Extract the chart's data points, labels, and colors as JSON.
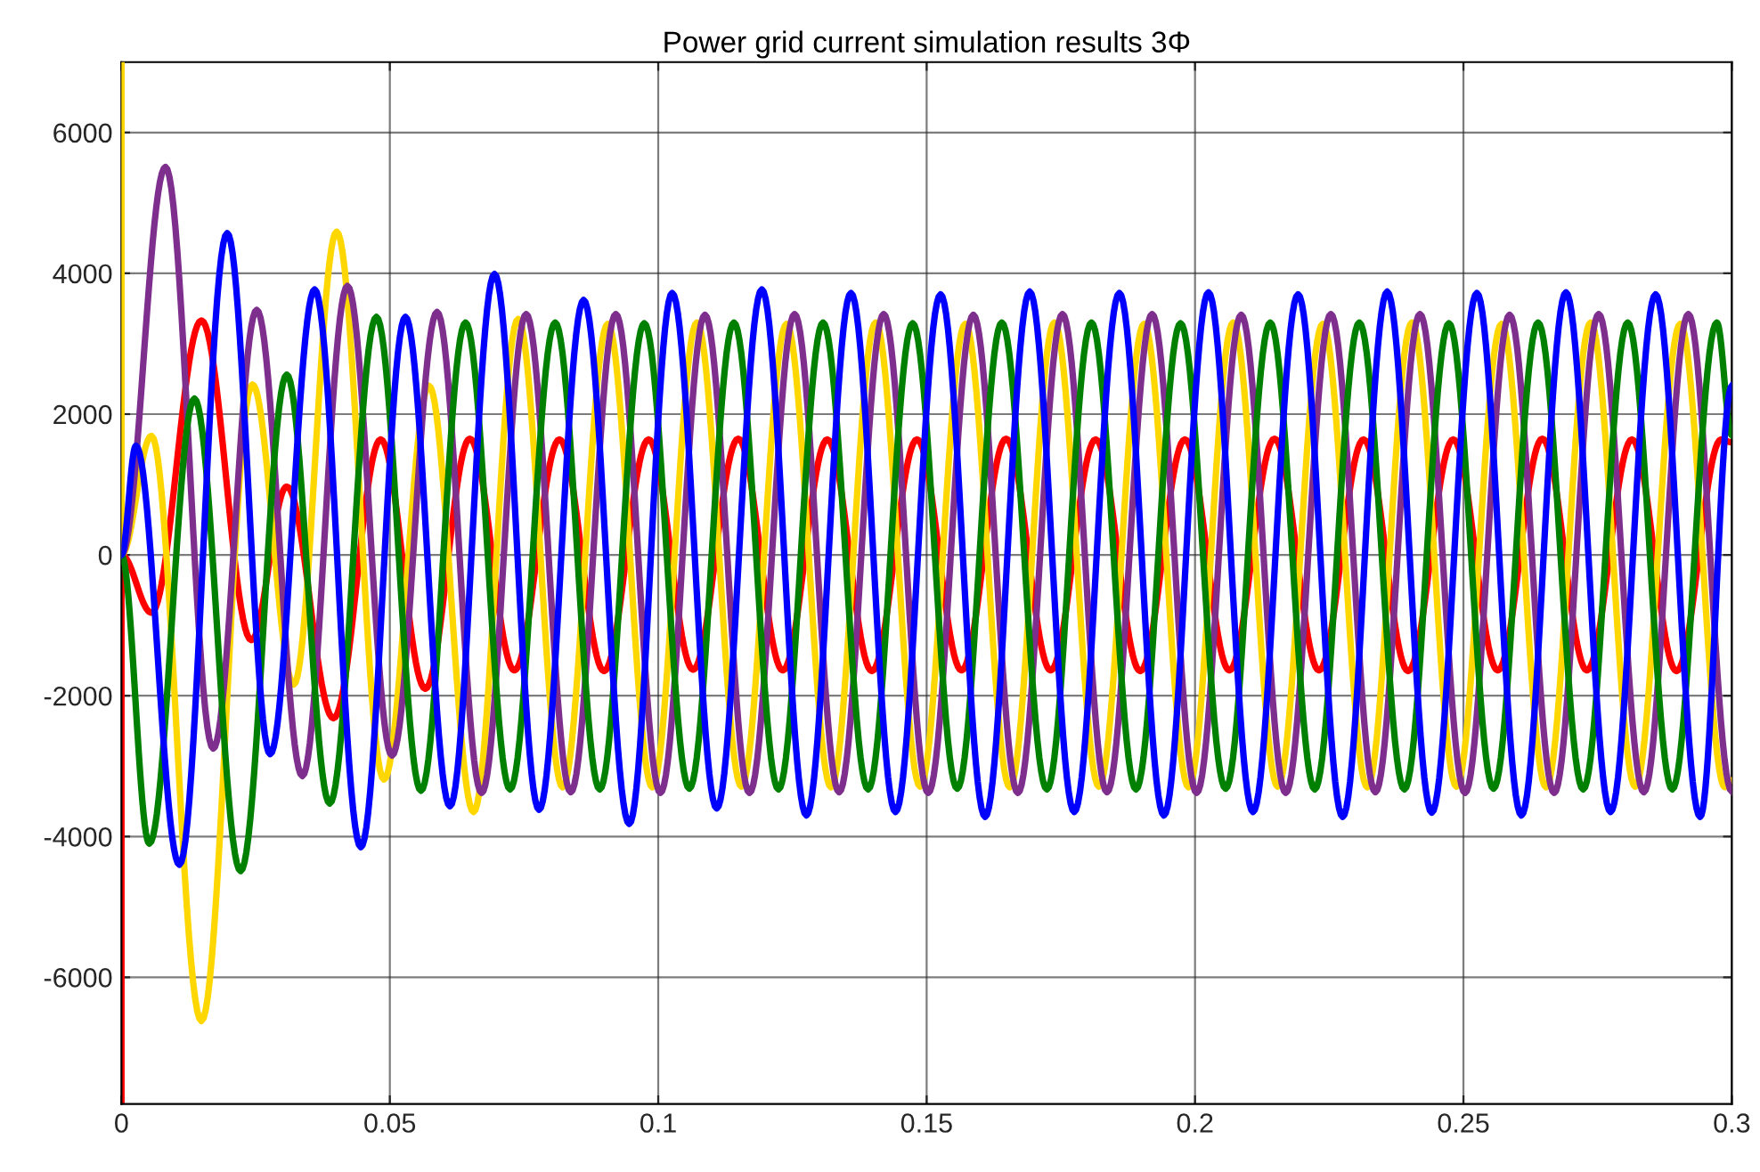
{
  "chart_data": {
    "type": "line",
    "title": "Power grid current simulation results 3Φ",
    "xlim": [
      0,
      0.3
    ],
    "ylim": [
      -7800,
      7000
    ],
    "xticks": [
      0,
      0.05,
      0.1,
      0.15,
      0.2,
      0.25,
      0.3
    ],
    "yticks": [
      -6000,
      -4000,
      -2000,
      0,
      2000,
      4000,
      6000
    ],
    "grid": true,
    "line_style": "solid",
    "marker": "none",
    "series": [
      {
        "color": "#ff0000",
        "x": [
          0,
          0,
          0.0056,
          0.0149,
          0.0242,
          0.0308,
          0.0395,
          0.0483,
          0.0566,
          0.0649,
          0.0732,
          0.0816,
          0.0899,
          0.0982,
          0.1065,
          0.1149,
          0.1232,
          0.1315,
          0.1398,
          0.1482,
          0.1565,
          0.1648,
          0.1731,
          0.1815,
          0.1898,
          0.1981,
          0.2064,
          0.2148,
          0.2231,
          0.2314,
          0.2397,
          0.2481,
          0.2564,
          0.2647,
          0.273,
          0.2814,
          0.2897,
          0.298,
          0.3
        ],
        "values": [
          -7800,
          0,
          -820,
          3330,
          -1210,
          970,
          -2320,
          1640,
          -1900,
          1650,
          -1640,
          1640,
          -1650,
          1640,
          -1630,
          1650,
          -1640,
          1640,
          -1650,
          1640,
          -1640,
          1650,
          -1640,
          1640,
          -1650,
          1640,
          -1640,
          1650,
          -1640,
          1640,
          -1650,
          1640,
          -1640,
          1650,
          -1640,
          1640,
          -1650,
          1640,
          1600
        ]
      },
      {
        "color": "#ffd700",
        "x": [
          0,
          0,
          0.0056,
          0.0149,
          0.0244,
          0.0321,
          0.0401,
          0.0489,
          0.0573,
          0.0656,
          0.0739,
          0.0822,
          0.0906,
          0.0989,
          0.1072,
          0.1155,
          0.1239,
          0.1322,
          0.1405,
          0.1488,
          0.1572,
          0.1655,
          0.1738,
          0.1821,
          0.1905,
          0.1988,
          0.2071,
          0.2154,
          0.2238,
          0.2321,
          0.2404,
          0.2487,
          0.2571,
          0.2654,
          0.2737,
          0.282,
          0.2904,
          0.2987,
          0.3
        ],
        "values": [
          7000,
          0,
          1690,
          -6620,
          2420,
          -1840,
          4590,
          -3190,
          2400,
          -3650,
          3350,
          -3300,
          3280,
          -3300,
          3300,
          -3290,
          3280,
          -3300,
          3300,
          -3290,
          3280,
          -3300,
          3300,
          -3290,
          3280,
          -3300,
          3300,
          -3290,
          3280,
          -3300,
          3300,
          -3290,
          3280,
          -3300,
          3300,
          -3290,
          3280,
          -3300,
          -3200
        ]
      },
      {
        "color": "#7e2f8e",
        "x": [
          0,
          0.0082,
          0.0171,
          0.0252,
          0.0337,
          0.0421,
          0.0504,
          0.0588,
          0.0671,
          0.0754,
          0.0837,
          0.0921,
          0.1004,
          0.1087,
          0.117,
          0.1254,
          0.1337,
          0.142,
          0.1503,
          0.1587,
          0.167,
          0.1753,
          0.1836,
          0.192,
          0.2003,
          0.2086,
          0.2169,
          0.2253,
          0.2336,
          0.2419,
          0.2503,
          0.2586,
          0.2669,
          0.2752,
          0.2836,
          0.2919,
          0.3
        ],
        "values": [
          0,
          5510,
          -2750,
          3480,
          -3140,
          3820,
          -2850,
          3450,
          -3380,
          3420,
          -3370,
          3420,
          -3380,
          3410,
          -3380,
          3420,
          -3370,
          3420,
          -3380,
          3410,
          -3380,
          3420,
          -3370,
          3420,
          -3380,
          3410,
          -3380,
          3420,
          -3370,
          3420,
          -3380,
          3410,
          -3380,
          3420,
          -3370,
          3420,
          -3360
        ]
      },
      {
        "color": "#008000",
        "x": [
          0,
          0.0052,
          0.0136,
          0.0222,
          0.0308,
          0.0388,
          0.0475,
          0.0558,
          0.0641,
          0.0724,
          0.0808,
          0.0891,
          0.0974,
          0.1058,
          0.1141,
          0.1224,
          0.1307,
          0.1391,
          0.1474,
          0.1557,
          0.164,
          0.1724,
          0.1807,
          0.189,
          0.1973,
          0.2057,
          0.214,
          0.2223,
          0.2306,
          0.239,
          0.2473,
          0.2556,
          0.2639,
          0.2723,
          0.2806,
          0.2889,
          0.2972,
          0.3
        ],
        "values": [
          0,
          -4100,
          2220,
          -4490,
          2560,
          -3530,
          3380,
          -3350,
          3300,
          -3330,
          3300,
          -3330,
          3290,
          -3320,
          3300,
          -3330,
          3300,
          -3330,
          3290,
          -3320,
          3300,
          -3330,
          3300,
          -3330,
          3290,
          -3320,
          3300,
          -3330,
          3300,
          -3330,
          3290,
          -3320,
          3300,
          -3330,
          3300,
          -3330,
          3300,
          1700
        ]
      },
      {
        "color": "#0000ff",
        "x": [
          0,
          0.0027,
          0.0108,
          0.0197,
          0.0277,
          0.036,
          0.0446,
          0.0529,
          0.0612,
          0.0695,
          0.0778,
          0.0861,
          0.0946,
          0.1026,
          0.1109,
          0.1193,
          0.1276,
          0.1359,
          0.1442,
          0.1526,
          0.1609,
          0.1692,
          0.1775,
          0.1859,
          0.1942,
          0.2025,
          0.2108,
          0.2192,
          0.2275,
          0.2358,
          0.2441,
          0.2525,
          0.2608,
          0.2691,
          0.2774,
          0.2858,
          0.2941,
          0.3
        ],
        "values": [
          0,
          1550,
          -4400,
          4570,
          -2830,
          3770,
          -4150,
          3380,
          -3570,
          3990,
          -3620,
          3620,
          -3820,
          3720,
          -3600,
          3770,
          -3700,
          3720,
          -3650,
          3700,
          -3720,
          3740,
          -3650,
          3720,
          -3700,
          3730,
          -3650,
          3700,
          -3720,
          3740,
          -3660,
          3720,
          -3700,
          3730,
          -3650,
          3700,
          -3720,
          2400
        ]
      }
    ]
  }
}
